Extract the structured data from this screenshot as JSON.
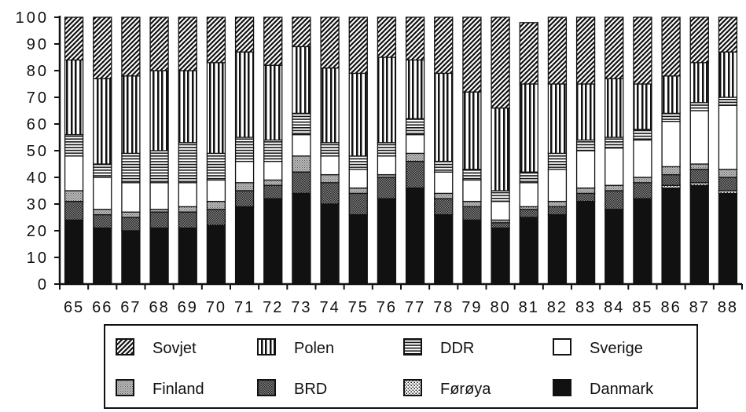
{
  "chart_data": {
    "type": "bar",
    "stacked": true,
    "title": "",
    "xlabel": "",
    "ylabel": "",
    "ylim": [
      0,
      100
    ],
    "yticks": [
      "0",
      "10",
      "20",
      "30",
      "40",
      "50",
      "60",
      "70",
      "80",
      "90",
      "100"
    ],
    "categories": [
      "65",
      "66",
      "67",
      "68",
      "69",
      "70",
      "71",
      "72",
      "73",
      "74",
      "75",
      "76",
      "77",
      "78",
      "79",
      "80",
      "81",
      "82",
      "83",
      "84",
      "85",
      "86",
      "87",
      "88"
    ],
    "grid": false,
    "legend_position": "bottom",
    "series": [
      {
        "name": "Danmark",
        "pattern": "solid",
        "values": [
          24,
          21,
          20,
          21,
          21,
          22,
          29,
          32,
          34,
          30,
          26,
          32,
          36,
          26,
          24,
          21,
          25,
          26,
          31,
          28,
          32,
          36,
          37,
          34
        ]
      },
      {
        "name": "Førøya",
        "pattern": "dots",
        "values": [
          0,
          0,
          0,
          0,
          0,
          0,
          0,
          0,
          0,
          0,
          0,
          0,
          0,
          0,
          0,
          0,
          0,
          0,
          0,
          0,
          0,
          1,
          1,
          1
        ]
      },
      {
        "name": "BRD",
        "pattern": "cross",
        "values": [
          7,
          5,
          5,
          6,
          6,
          6,
          6,
          5,
          8,
          8,
          8,
          8,
          10,
          6,
          5,
          2,
          3,
          3,
          3,
          7,
          6,
          4,
          5,
          5
        ]
      },
      {
        "name": "Finland",
        "pattern": "fine",
        "values": [
          4,
          2,
          2,
          1,
          2,
          3,
          3,
          2,
          6,
          3,
          2,
          1,
          3,
          2,
          2,
          1,
          1,
          2,
          2,
          2,
          2,
          3,
          2,
          3
        ]
      },
      {
        "name": "Sverige",
        "pattern": "empty",
        "values": [
          13,
          12,
          11,
          10,
          9,
          8,
          8,
          7,
          8,
          7,
          7,
          7,
          7,
          8,
          8,
          7,
          9,
          12,
          14,
          14,
          14,
          17,
          20,
          24
        ]
      },
      {
        "name": "DDR",
        "pattern": "hlines",
        "values": [
          8,
          5,
          11,
          12,
          15,
          10,
          9,
          8,
          8,
          5,
          5,
          5,
          6,
          4,
          4,
          4,
          4,
          6,
          4,
          4,
          4,
          3,
          3,
          3
        ]
      },
      {
        "name": "Polen",
        "pattern": "vlines",
        "values": [
          28,
          32,
          29,
          30,
          27,
          34,
          32,
          28,
          25,
          28,
          31,
          32,
          22,
          33,
          29,
          31,
          33,
          26,
          21,
          22,
          17,
          14,
          15,
          17
        ]
      },
      {
        "name": "Sovjet",
        "pattern": "diagonal",
        "values": [
          16,
          23,
          22,
          20,
          20,
          17,
          13,
          18,
          11,
          19,
          21,
          15,
          16,
          21,
          28,
          34,
          23,
          25,
          25,
          23,
          25,
          22,
          17,
          13
        ]
      }
    ]
  },
  "legend_order": [
    "Sovjet",
    "Polen",
    "DDR",
    "Sverige",
    "Finland",
    "BRD",
    "Førøya",
    "Danmark"
  ],
  "colors": {
    "ink": "#111111",
    "paper": "#ffffff"
  }
}
